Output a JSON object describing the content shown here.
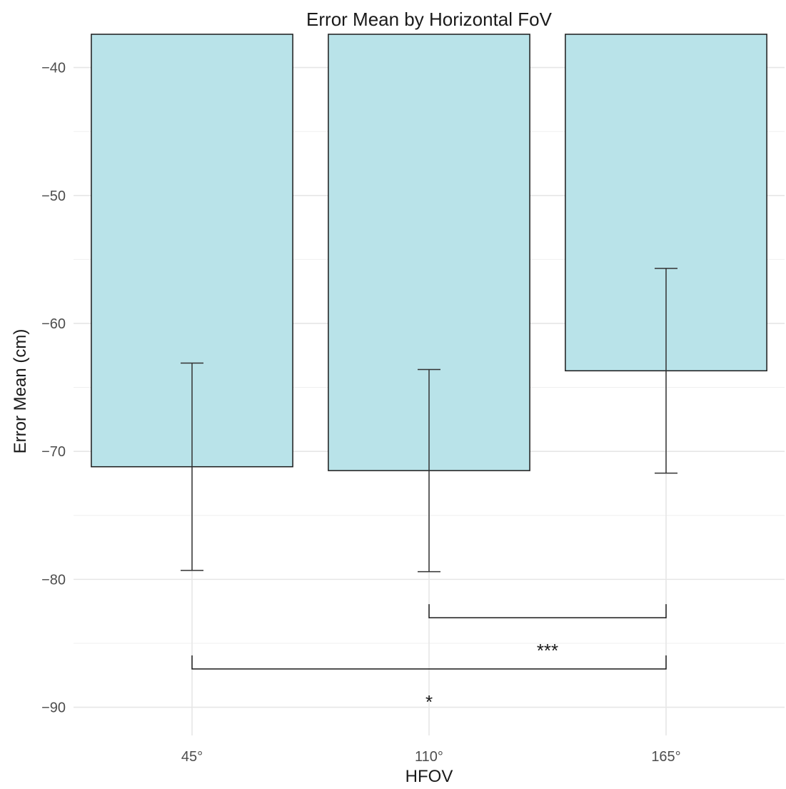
{
  "chart_data": {
    "type": "bar",
    "title": "Error Mean by Horizontal FoV",
    "xlabel": "HFOV",
    "ylabel": "Error Mean (cm)",
    "categories": [
      "45°",
      "110°",
      "165°"
    ],
    "values": [
      -71.2,
      -71.5,
      -63.7
    ],
    "error_bars": [
      {
        "low": -79.3,
        "high": -63.1
      },
      {
        "low": -79.4,
        "high": -63.6
      },
      {
        "low": -71.7,
        "high": -55.7
      }
    ],
    "ylim": [
      -92.2,
      -37.4
    ],
    "yticks": [
      -40,
      -50,
      -60,
      -70,
      -80,
      -90
    ],
    "ytick_labels": [
      "−40",
      "−50",
      "−60",
      "−70",
      "−80",
      "−90"
    ],
    "grid": true,
    "bar_color": "#b9e3e9",
    "significance": [
      {
        "from": "110°",
        "to": "165°",
        "y": -83,
        "label": "***"
      },
      {
        "from": "45°",
        "to": "165°",
        "y": -87,
        "label": "*"
      }
    ]
  }
}
